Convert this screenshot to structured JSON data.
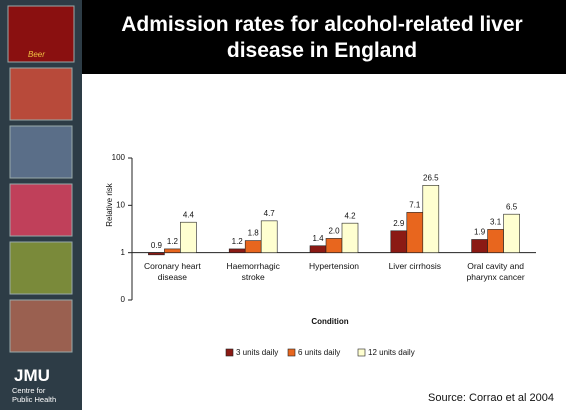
{
  "sidebar": {
    "badge": "Beer",
    "logo": "JMU",
    "caption": "Centre for Public Health"
  },
  "source": "Source: Corrao et al 2004",
  "chart_data": {
    "type": "bar",
    "title": "Admission rates for alcohol-related liver disease in England",
    "x_label": "Condition",
    "y_label": "Relative risk",
    "categories": [
      "Coronary heart disease",
      "Haemorrhagic stroke",
      "Hypertension",
      "Liver cirrhosis",
      "Oral cavity and pharynx cancer"
    ],
    "series": [
      {
        "name": "3 units daily",
        "color": "#8b1a14",
        "values": [
          0.9,
          1.2,
          1.4,
          2.9,
          1.9
        ],
        "value_labels": [
          "0.9",
          "1.2",
          "1.4",
          "2.9",
          "1.9"
        ]
      },
      {
        "name": "6 units daily",
        "color": "#e8661e",
        "values": [
          1.2,
          1.8,
          2.0,
          7.1,
          3.1
        ],
        "value_labels": [
          "1.2",
          "1.8",
          "2.0",
          "7.1",
          "3.1"
        ]
      },
      {
        "name": "12 units daily",
        "color": "#ffffd0",
        "values": [
          4.4,
          4.7,
          4.2,
          26.5,
          6.5
        ],
        "value_labels": [
          "4.4",
          "4.7",
          "4.2",
          "26.5",
          "6.5"
        ]
      }
    ],
    "log_scale": true,
    "ylim": [
      0.1,
      100
    ],
    "yticks": [
      {
        "value": 0.1,
        "label": "0"
      },
      1,
      10,
      100
    ],
    "legend": "bottom"
  }
}
